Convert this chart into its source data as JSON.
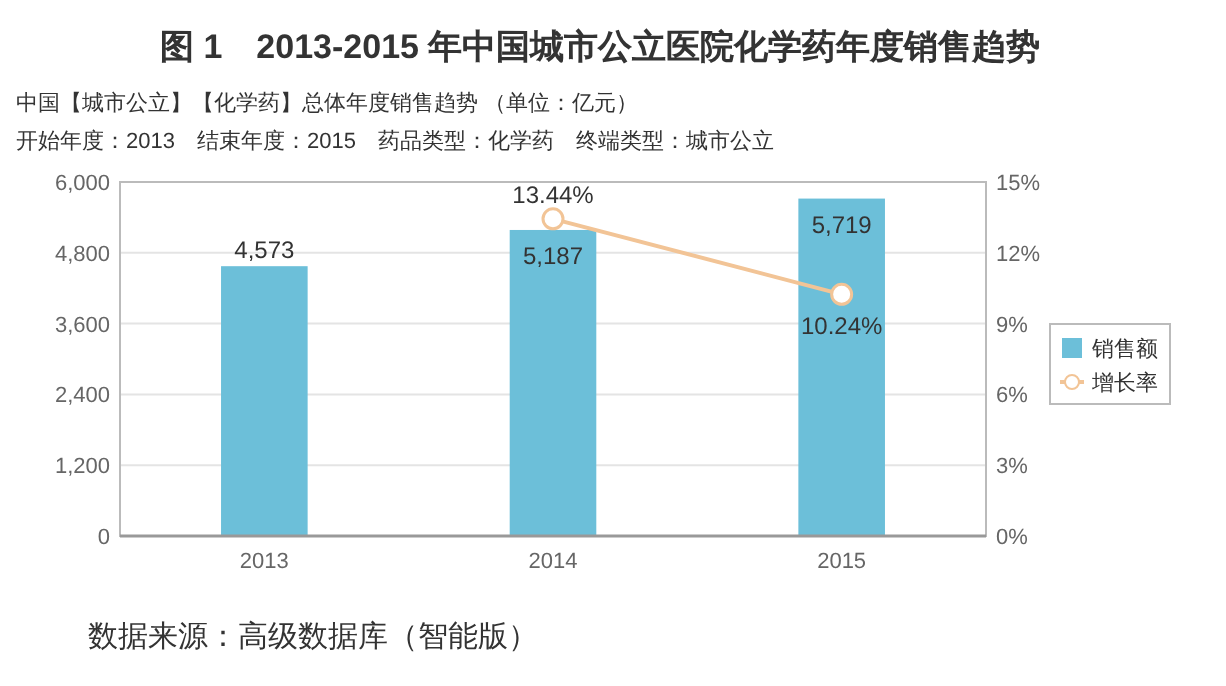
{
  "chart_data": {
    "type": "bar",
    "title": "图 1　2013-2015 年中国城市公立医院化学药年度销售趋势",
    "subtitle": "中国【城市公立】【化学药】总体年度销售趋势 （单位：亿元）",
    "annotations": [
      "开始年度：2013　结束年度：2015　药品类型：化学药　终端类型：城市公立",
      "数据来源：高级数据库（智能版）"
    ],
    "categories": [
      "2013",
      "2014",
      "2015"
    ],
    "series": [
      {
        "name": "销售额",
        "color": "#6cbfd9",
        "values": [
          4573,
          5187,
          5719
        ],
        "value_labels": [
          "4,573",
          "5,187",
          "5,719"
        ]
      },
      {
        "name": "增长率",
        "type": "line",
        "axis": "y2",
        "color": "#f2c496",
        "values": [
          null,
          13.44,
          10.24
        ],
        "value_labels": [
          null,
          "13.44%",
          "10.24%"
        ]
      }
    ],
    "ylim": [
      0,
      6000
    ],
    "yticks": [
      {
        "value": 0,
        "label": "0"
      },
      {
        "value": 1200,
        "label": "1,200"
      },
      {
        "value": 2400,
        "label": "2,400"
      },
      {
        "value": 3600,
        "label": "3,600"
      },
      {
        "value": 4800,
        "label": "4,800"
      },
      {
        "value": 6000,
        "label": "6,000"
      }
    ],
    "y2lim": [
      0,
      15
    ],
    "y2ticks": [
      {
        "value": 0,
        "label": "0%"
      },
      {
        "value": 3,
        "label": "3%"
      },
      {
        "value": 6,
        "label": "6%"
      },
      {
        "value": 9,
        "label": "9%"
      },
      {
        "value": 12,
        "label": "12%"
      },
      {
        "value": 15,
        "label": "15%"
      }
    ],
    "grid": "y",
    "legend": "right",
    "marker": "circle"
  }
}
